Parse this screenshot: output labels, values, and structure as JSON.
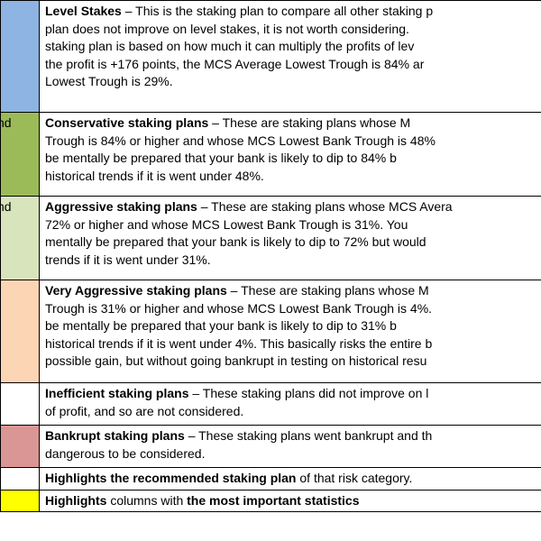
{
  "rows": [
    {
      "swatch_color": "#8db4e2",
      "swatch_text": "",
      "title": "Level Stakes",
      "lines": [
        " – This is the staking plan to compare all other staking p",
        "plan does not improve on level stakes, it is not worth considering.",
        "staking plan is based on how much it can multiply the profits of lev",
        "the profit is +176 points, the MCS Average Lowest Trough is 84% ar",
        "Lowest Trough is 29%."
      ]
    },
    {
      "swatch_color": "#9bbb59",
      "swatch_text": "nd",
      "title": "Conservative staking plans",
      "lines": [
        " – These are staking plans whose M",
        "Trough is 84% or higher and whose MCS Lowest Bank Trough is 48%",
        "be mentally be prepared that your bank is likely to dip to 84% b",
        "historical trends if it is went under 48%."
      ]
    },
    {
      "swatch_color": "#d8e4bc",
      "swatch_text": "nd",
      "title": "Aggressive staking plans",
      "lines": [
        " – These are staking plans whose MCS Avera",
        "72% or higher and whose MCS Lowest Bank Trough is 31%. You",
        "mentally be prepared that your bank is likely to dip to 72% but would",
        "trends if it is went under 31%."
      ]
    },
    {
      "swatch_color": "#fcd5b4",
      "swatch_text": "",
      "title": "Very Aggressive staking plans",
      "lines": [
        " – These are staking plans whose M",
        "Trough is 31% or higher and whose MCS Lowest Bank Trough is 4%.",
        "be mentally be prepared that your bank is likely to dip to 31% b",
        "historical trends if it is went under 4%. This basically risks the entire b",
        "possible gain, but without going bankrupt in testing on historical resu"
      ]
    },
    {
      "swatch_color": "#ffffff",
      "swatch_text": "",
      "title": "Inefficient staking plans",
      "lines": [
        " – These staking plans did not improve on l",
        "of profit, and so are not considered."
      ]
    },
    {
      "swatch_color": "#da9694",
      "swatch_text": "",
      "title": "Bankrupt staking plans",
      "lines": [
        " – These staking plans went bankrupt and th",
        "dangerous to be considered."
      ]
    }
  ],
  "row_highlight": {
    "bold_part": "Highlights the recommended staking plan",
    "rest": " of that risk category."
  },
  "row_yellow": {
    "swatch_color": "#ffff00",
    "bold1": "Highlights",
    "mid": " columns with ",
    "bold2": "the most important statistics"
  }
}
